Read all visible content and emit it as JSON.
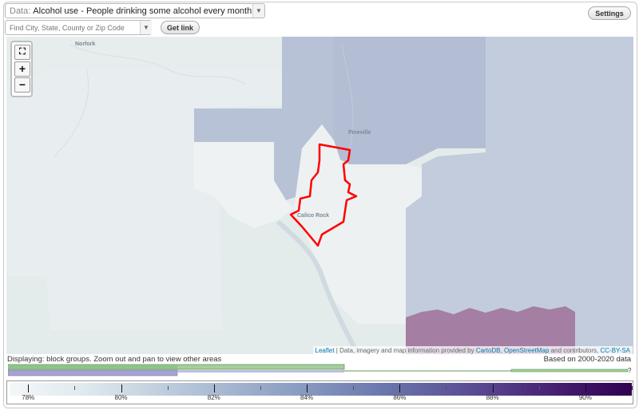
{
  "header": {
    "data_prefix": "Data:",
    "data_value": "Alcohol use - People drinking some alcohol every month (%)",
    "search_placeholder": "Find City, State, County or Zip Code",
    "get_link_label": "Get link",
    "settings_label": "Settings"
  },
  "map": {
    "labels": {
      "norfork": "Norfork",
      "pineville": "Pineville",
      "calico_rock": "Calico Rock"
    },
    "zoom_extent_symbol": "⛶",
    "zoom_in_symbol": "+",
    "zoom_out_symbol": "−",
    "attribution": {
      "leaflet": "Leaflet",
      "separator": " | Data, imagery and map information provided by ",
      "cartodb": "CartoDB",
      "comma": ", ",
      "osm": "OpenStreetMap",
      "tail": " and contributors, ",
      "license": "CC-BY-SA"
    },
    "colors": {
      "base": "#e4ebeb",
      "light_tract": "#eef2f3",
      "mid_tract": "#d2dde3",
      "blue_tract": "#b9c4d6",
      "purple_tract": "#a57fa3",
      "highlight": "#ff0000"
    }
  },
  "footer": {
    "displaying": "Displaying: block groups. Zoom out and pan to view other areas",
    "based_on": "Based on 2000-2020 data",
    "histogram_marker": "?"
  },
  "legend": {
    "labels": [
      "78%",
      "80%",
      "82%",
      "84%",
      "86%",
      "88%",
      "90%"
    ],
    "min": 77.6,
    "max": 91.0
  }
}
